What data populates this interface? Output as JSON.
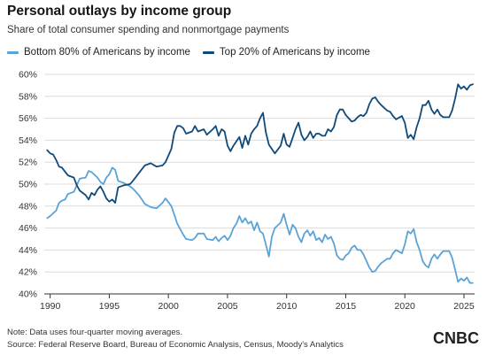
{
  "header": {
    "title": "Personal outlays by income group",
    "subtitle": "Share of total consumer spending and nonmortgage payments"
  },
  "legend": [
    {
      "label": "Bottom 80% of Americans by income",
      "color": "#5ba3d6"
    },
    {
      "label": "Top 20% of Americans by income",
      "color": "#0f4a7a"
    }
  ],
  "footer": {
    "note": "Note: Data uses four-quarter moving averages.",
    "source": "Source: Federal Reserve Board, Bureau of Economic Analysis, Census, Moody's Analytics",
    "logo_text": "CNBC"
  },
  "chart_data": {
    "type": "line",
    "title": "Personal outlays by income group",
    "subtitle": "Share of total consumer spending and nonmortgage payments",
    "xlabel": "",
    "ylabel": "",
    "xlim": [
      1989.5,
      2025.9
    ],
    "ylim": [
      40,
      60
    ],
    "x_ticks": [
      1990,
      1995,
      2000,
      2005,
      2010,
      2015,
      2020,
      2025
    ],
    "y_ticks": [
      40,
      42,
      44,
      46,
      48,
      50,
      52,
      54,
      56,
      58,
      60
    ],
    "y_tick_suffix": "%",
    "grid": "horizontal",
    "legend_position": "top",
    "series": [
      {
        "name": "Bottom 80% of Americans by income",
        "color": "#5ba3d6",
        "points": [
          [
            1989.75,
            46.9
          ],
          [
            1990.0,
            47.1
          ],
          [
            1990.5,
            47.6
          ],
          [
            1990.75,
            48.3
          ],
          [
            1991.0,
            48.5
          ],
          [
            1991.25,
            48.6
          ],
          [
            1991.5,
            49.1
          ],
          [
            1992.0,
            49.3
          ],
          [
            1992.25,
            49.9
          ],
          [
            1992.5,
            50.5
          ],
          [
            1993.0,
            50.6
          ],
          [
            1993.25,
            51.2
          ],
          [
            1993.5,
            51.1
          ],
          [
            1994.0,
            50.6
          ],
          [
            1994.25,
            50.2
          ],
          [
            1994.5,
            50.0
          ],
          [
            1994.75,
            50.6
          ],
          [
            1995.0,
            50.9
          ],
          [
            1995.25,
            51.5
          ],
          [
            1995.5,
            51.3
          ],
          [
            1995.75,
            50.3
          ],
          [
            1996.25,
            50.1
          ],
          [
            1996.75,
            49.8
          ],
          [
            1997.0,
            49.6
          ],
          [
            1997.5,
            49.0
          ],
          [
            1998.0,
            48.2
          ],
          [
            1998.5,
            47.9
          ],
          [
            1999.0,
            47.8
          ],
          [
            1999.5,
            48.3
          ],
          [
            1999.75,
            48.7
          ],
          [
            2000.25,
            48.0
          ],
          [
            2000.5,
            47.2
          ],
          [
            2000.75,
            46.4
          ],
          [
            2001.0,
            45.9
          ],
          [
            2001.25,
            45.4
          ],
          [
            2001.5,
            45.0
          ],
          [
            2002.0,
            44.9
          ],
          [
            2002.25,
            45.1
          ],
          [
            2002.5,
            45.5
          ],
          [
            2003.0,
            45.5
          ],
          [
            2003.25,
            45.0
          ],
          [
            2003.75,
            44.9
          ],
          [
            2004.0,
            45.2
          ],
          [
            2004.25,
            44.8
          ],
          [
            2004.5,
            45.1
          ],
          [
            2004.75,
            45.3
          ],
          [
            2005.0,
            44.9
          ],
          [
            2005.25,
            45.3
          ],
          [
            2005.5,
            46.0
          ],
          [
            2005.75,
            46.4
          ],
          [
            2006.0,
            47.1
          ],
          [
            2006.25,
            46.5
          ],
          [
            2006.5,
            46.9
          ],
          [
            2006.75,
            46.4
          ],
          [
            2007.0,
            46.6
          ],
          [
            2007.25,
            45.8
          ],
          [
            2007.5,
            46.5
          ],
          [
            2007.75,
            45.7
          ],
          [
            2008.0,
            45.5
          ],
          [
            2008.25,
            44.5
          ],
          [
            2008.5,
            43.4
          ],
          [
            2008.75,
            45.2
          ],
          [
            2009.0,
            46.0
          ],
          [
            2009.5,
            46.5
          ],
          [
            2009.75,
            47.3
          ],
          [
            2010.0,
            46.3
          ],
          [
            2010.25,
            45.4
          ],
          [
            2010.5,
            46.3
          ],
          [
            2010.75,
            46.0
          ],
          [
            2011.0,
            45.2
          ],
          [
            2011.25,
            44.7
          ],
          [
            2011.5,
            45.5
          ],
          [
            2011.75,
            45.8
          ],
          [
            2012.0,
            45.3
          ],
          [
            2012.25,
            45.7
          ],
          [
            2012.5,
            44.9
          ],
          [
            2012.75,
            45.1
          ],
          [
            2013.0,
            44.7
          ],
          [
            2013.25,
            45.4
          ],
          [
            2013.5,
            45.0
          ],
          [
            2013.75,
            45.2
          ],
          [
            2014.0,
            44.6
          ],
          [
            2014.25,
            43.5
          ],
          [
            2014.5,
            43.2
          ],
          [
            2014.75,
            43.1
          ],
          [
            2015.0,
            43.5
          ],
          [
            2015.25,
            43.7
          ],
          [
            2015.5,
            44.2
          ],
          [
            2015.75,
            44.4
          ],
          [
            2016.0,
            44.0
          ],
          [
            2016.25,
            44.0
          ],
          [
            2016.5,
            43.6
          ],
          [
            2016.75,
            43.0
          ],
          [
            2017.0,
            42.4
          ],
          [
            2017.25,
            42.0
          ],
          [
            2017.5,
            42.1
          ],
          [
            2017.75,
            42.5
          ],
          [
            2018.0,
            42.8
          ],
          [
            2018.5,
            43.2
          ],
          [
            2018.75,
            43.2
          ],
          [
            2019.0,
            43.7
          ],
          [
            2019.25,
            44.0
          ],
          [
            2019.75,
            43.7
          ],
          [
            2020.0,
            44.5
          ],
          [
            2020.25,
            45.7
          ],
          [
            2020.5,
            45.5
          ],
          [
            2020.75,
            45.9
          ],
          [
            2021.0,
            44.7
          ],
          [
            2021.25,
            44.0
          ],
          [
            2021.5,
            43.0
          ],
          [
            2021.75,
            42.6
          ],
          [
            2022.0,
            42.4
          ],
          [
            2022.25,
            43.2
          ],
          [
            2022.5,
            43.6
          ],
          [
            2022.75,
            43.2
          ],
          [
            2023.0,
            43.6
          ],
          [
            2023.25,
            43.9
          ],
          [
            2023.75,
            43.9
          ],
          [
            2024.0,
            43.3
          ],
          [
            2024.25,
            42.2
          ],
          [
            2024.5,
            41.1
          ],
          [
            2024.75,
            41.4
          ],
          [
            2025.0,
            41.2
          ],
          [
            2025.25,
            41.5
          ],
          [
            2025.5,
            41.0
          ],
          [
            2025.75,
            41.0
          ]
        ]
      },
      {
        "name": "Top 20% of Americans by income",
        "color": "#0f4a7a",
        "points": [
          [
            1989.75,
            53.1
          ],
          [
            1990.0,
            52.8
          ],
          [
            1990.25,
            52.7
          ],
          [
            1990.5,
            52.2
          ],
          [
            1990.75,
            51.6
          ],
          [
            1991.0,
            51.5
          ],
          [
            1991.5,
            50.8
          ],
          [
            1992.0,
            50.6
          ],
          [
            1992.25,
            49.9
          ],
          [
            1992.5,
            49.4
          ],
          [
            1993.0,
            49.0
          ],
          [
            1993.25,
            48.6
          ],
          [
            1993.5,
            49.2
          ],
          [
            1993.75,
            49.0
          ],
          [
            1994.0,
            49.5
          ],
          [
            1994.25,
            49.8
          ],
          [
            1994.5,
            49.3
          ],
          [
            1994.75,
            48.7
          ],
          [
            1995.0,
            48.4
          ],
          [
            1995.25,
            48.6
          ],
          [
            1995.5,
            48.3
          ],
          [
            1995.75,
            49.7
          ],
          [
            1996.25,
            49.9
          ],
          [
            1996.75,
            50.0
          ],
          [
            1997.0,
            50.3
          ],
          [
            1997.5,
            51.0
          ],
          [
            1998.0,
            51.7
          ],
          [
            1998.5,
            51.9
          ],
          [
            1999.0,
            51.6
          ],
          [
            1999.5,
            51.7
          ],
          [
            1999.75,
            52.0
          ],
          [
            2000.25,
            53.2
          ],
          [
            2000.5,
            54.7
          ],
          [
            2000.75,
            55.3
          ],
          [
            2001.0,
            55.3
          ],
          [
            2001.25,
            55.1
          ],
          [
            2001.5,
            54.6
          ],
          [
            2002.0,
            54.8
          ],
          [
            2002.25,
            55.3
          ],
          [
            2002.5,
            54.8
          ],
          [
            2003.0,
            55.0
          ],
          [
            2003.25,
            54.5
          ],
          [
            2003.75,
            55.0
          ],
          [
            2004.0,
            55.3
          ],
          [
            2004.25,
            54.4
          ],
          [
            2004.5,
            55.0
          ],
          [
            2004.75,
            54.8
          ],
          [
            2005.0,
            53.5
          ],
          [
            2005.25,
            53.0
          ],
          [
            2005.5,
            53.5
          ],
          [
            2005.75,
            53.9
          ],
          [
            2006.0,
            54.3
          ],
          [
            2006.25,
            53.3
          ],
          [
            2006.5,
            54.4
          ],
          [
            2006.75,
            53.6
          ],
          [
            2007.0,
            54.6
          ],
          [
            2007.25,
            55.0
          ],
          [
            2007.5,
            55.3
          ],
          [
            2007.75,
            56.0
          ],
          [
            2008.0,
            56.5
          ],
          [
            2008.25,
            54.7
          ],
          [
            2008.5,
            53.6
          ],
          [
            2008.75,
            53.2
          ],
          [
            2009.0,
            52.8
          ],
          [
            2009.5,
            53.5
          ],
          [
            2009.75,
            54.6
          ],
          [
            2010.0,
            53.6
          ],
          [
            2010.25,
            53.4
          ],
          [
            2010.5,
            54.2
          ],
          [
            2010.75,
            55.0
          ],
          [
            2011.0,
            55.6
          ],
          [
            2011.25,
            54.5
          ],
          [
            2011.5,
            54.0
          ],
          [
            2011.75,
            54.3
          ],
          [
            2012.0,
            54.8
          ],
          [
            2012.25,
            54.2
          ],
          [
            2012.5,
            54.6
          ],
          [
            2012.75,
            54.6
          ],
          [
            2013.0,
            54.4
          ],
          [
            2013.25,
            54.4
          ],
          [
            2013.5,
            55.0
          ],
          [
            2013.75,
            54.8
          ],
          [
            2014.0,
            55.2
          ],
          [
            2014.25,
            56.3
          ],
          [
            2014.5,
            56.8
          ],
          [
            2014.75,
            56.8
          ],
          [
            2015.0,
            56.3
          ],
          [
            2015.25,
            56.0
          ],
          [
            2015.5,
            55.7
          ],
          [
            2015.75,
            55.8
          ],
          [
            2016.0,
            56.1
          ],
          [
            2016.25,
            56.3
          ],
          [
            2016.5,
            56.2
          ],
          [
            2016.75,
            56.5
          ],
          [
            2017.0,
            57.3
          ],
          [
            2017.25,
            57.8
          ],
          [
            2017.5,
            57.9
          ],
          [
            2017.75,
            57.5
          ],
          [
            2018.0,
            57.2
          ],
          [
            2018.5,
            56.7
          ],
          [
            2018.75,
            56.6
          ],
          [
            2019.0,
            56.2
          ],
          [
            2019.25,
            55.9
          ],
          [
            2019.75,
            56.2
          ],
          [
            2020.0,
            55.6
          ],
          [
            2020.25,
            54.2
          ],
          [
            2020.5,
            54.5
          ],
          [
            2020.75,
            54.1
          ],
          [
            2021.0,
            55.2
          ],
          [
            2021.25,
            56.0
          ],
          [
            2021.5,
            57.2
          ],
          [
            2021.75,
            57.2
          ],
          [
            2022.0,
            57.6
          ],
          [
            2022.25,
            56.8
          ],
          [
            2022.5,
            56.4
          ],
          [
            2022.75,
            56.8
          ],
          [
            2023.0,
            56.3
          ],
          [
            2023.25,
            56.1
          ],
          [
            2023.75,
            56.1
          ],
          [
            2024.0,
            56.7
          ],
          [
            2024.25,
            57.8
          ],
          [
            2024.5,
            59.1
          ],
          [
            2024.75,
            58.7
          ],
          [
            2025.0,
            58.9
          ],
          [
            2025.25,
            58.6
          ],
          [
            2025.5,
            59.0
          ],
          [
            2025.75,
            59.1
          ]
        ]
      }
    ]
  }
}
